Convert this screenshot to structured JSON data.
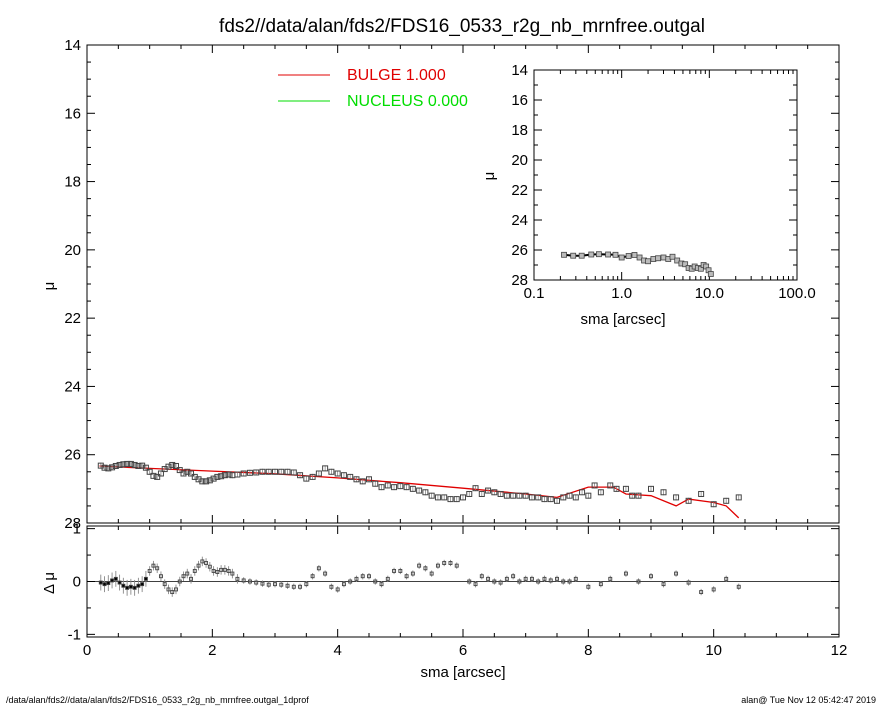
{
  "chart_data": [
    {
      "type": "scatter",
      "role": "main",
      "title": "fds2//data/alan/fds2/FDS16_0533_r2g_nb_mrnfree.outgal",
      "xlabel": "sma [arcsec]",
      "ylabel": "μ",
      "xlim": [
        0,
        12
      ],
      "ylim": [
        28,
        14
      ],
      "yreversed": true,
      "xticks": [
        "0",
        "2",
        "4",
        "6",
        "8",
        "10",
        "12"
      ],
      "yticks": [
        "14",
        "16",
        "18",
        "20",
        "22",
        "24",
        "26",
        "28"
      ],
      "legend": [
        {
          "label": "BULGE  1.000",
          "color": "#e00000"
        },
        {
          "label": "NUCLEUS  0.000",
          "color": "#00dd00"
        }
      ],
      "series": [
        {
          "name": "BULGE  1.000",
          "kind": "line",
          "color": "#e00000",
          "x": [
            0.2,
            1.0,
            2.0,
            3.0,
            4.0,
            5.0,
            6.0,
            7.0,
            7.5,
            8.0,
            8.4,
            8.6,
            9.0,
            9.4,
            9.6,
            10.0,
            10.2,
            10.4
          ],
          "y": [
            26.33,
            26.4,
            26.48,
            26.56,
            26.68,
            26.82,
            26.98,
            27.15,
            27.25,
            26.95,
            26.95,
            27.15,
            27.2,
            27.5,
            27.3,
            27.4,
            27.5,
            27.85
          ]
        },
        {
          "name": "data",
          "kind": "points",
          "color": "#444444",
          "x": [
            0.22,
            0.28,
            0.34,
            0.4,
            0.46,
            0.52,
            0.58,
            0.64,
            0.7,
            0.76,
            0.82,
            0.88,
            0.94,
            1.0,
            1.06,
            1.12,
            1.18,
            1.24,
            1.3,
            1.36,
            1.42,
            1.48,
            1.54,
            1.6,
            1.66,
            1.72,
            1.78,
            1.84,
            1.9,
            1.96,
            2.02,
            2.08,
            2.14,
            2.2,
            2.26,
            2.32,
            2.4,
            2.5,
            2.6,
            2.7,
            2.8,
            2.9,
            3.0,
            3.1,
            3.2,
            3.3,
            3.4,
            3.5,
            3.6,
            3.7,
            3.8,
            3.9,
            4.0,
            4.1,
            4.2,
            4.3,
            4.4,
            4.5,
            4.6,
            4.7,
            4.8,
            4.9,
            5.0,
            5.1,
            5.2,
            5.3,
            5.4,
            5.5,
            5.6,
            5.7,
            5.8,
            5.9,
            6.0,
            6.1,
            6.2,
            6.3,
            6.4,
            6.5,
            6.6,
            6.7,
            6.8,
            6.9,
            7.0,
            7.1,
            7.2,
            7.3,
            7.4,
            7.5,
            7.6,
            7.7,
            7.8,
            7.9,
            8.0,
            8.1,
            8.2,
            8.35,
            8.45,
            8.6,
            8.7,
            8.8,
            9.0,
            9.2,
            9.4,
            9.6,
            9.8,
            10.0,
            10.2,
            10.4
          ],
          "y": [
            26.32,
            26.38,
            26.4,
            26.37,
            26.33,
            26.3,
            26.28,
            26.27,
            26.27,
            26.3,
            26.33,
            26.32,
            26.38,
            26.5,
            26.62,
            26.65,
            26.55,
            26.42,
            26.35,
            26.3,
            26.33,
            26.45,
            26.55,
            26.5,
            26.55,
            26.65,
            26.72,
            26.78,
            26.78,
            26.75,
            26.7,
            26.65,
            26.63,
            26.6,
            26.58,
            26.6,
            26.58,
            26.55,
            26.53,
            26.52,
            26.5,
            26.5,
            26.5,
            26.5,
            26.5,
            26.52,
            26.6,
            26.7,
            26.65,
            26.55,
            26.4,
            26.5,
            26.55,
            26.6,
            26.65,
            26.72,
            26.78,
            26.72,
            26.85,
            26.95,
            26.9,
            26.95,
            26.92,
            26.95,
            27.0,
            27.05,
            27.1,
            27.2,
            27.25,
            27.25,
            27.3,
            27.3,
            27.25,
            27.15,
            26.98,
            27.15,
            27.05,
            27.1,
            27.15,
            27.2,
            27.2,
            27.2,
            27.2,
            27.25,
            27.25,
            27.3,
            27.3,
            27.35,
            27.25,
            27.2,
            27.25,
            27.1,
            27.2,
            26.9,
            27.1,
            26.9,
            27.0,
            27.0,
            27.2,
            27.2,
            27.0,
            27.1,
            27.25,
            27.35,
            27.15,
            27.45,
            27.35,
            27.25
          ]
        }
      ]
    },
    {
      "type": "scatter",
      "role": "inset",
      "xlabel": "sma [arcsec]",
      "ylabel": "μ",
      "xscale": "log",
      "xlim": [
        0.1,
        100.0
      ],
      "ylim": [
        28,
        14
      ],
      "yreversed": true,
      "xticks": [
        "0.1",
        "1.0",
        "10.0",
        "100.0"
      ],
      "yticks": [
        "14",
        "16",
        "18",
        "20",
        "22",
        "24",
        "26",
        "28"
      ],
      "series": [
        {
          "name": "data",
          "kind": "points-line",
          "color": "#444444",
          "x": [
            0.22,
            0.28,
            0.35,
            0.45,
            0.55,
            0.7,
            0.85,
            1.0,
            1.2,
            1.4,
            1.6,
            1.8,
            2.0,
            2.3,
            2.6,
            3.0,
            3.4,
            3.8,
            4.3,
            4.8,
            5.3,
            5.8,
            6.3,
            6.8,
            7.4,
            8.0,
            8.6,
            9.2,
            9.8,
            10.4
          ],
          "y": [
            26.32,
            26.38,
            26.38,
            26.3,
            26.28,
            26.3,
            26.32,
            26.5,
            26.4,
            26.33,
            26.5,
            26.7,
            26.75,
            26.6,
            26.55,
            26.5,
            26.6,
            26.45,
            26.7,
            26.9,
            26.95,
            27.2,
            27.25,
            27.1,
            27.2,
            27.25,
            27.0,
            27.1,
            27.35,
            27.6
          ]
        }
      ]
    },
    {
      "type": "scatter",
      "role": "residuals",
      "xlabel": "sma [arcsec]",
      "ylabel": "Δ μ",
      "xlim": [
        0,
        12
      ],
      "ylim": [
        -1,
        1
      ],
      "xticks": [
        "0",
        "2",
        "4",
        "6",
        "8",
        "10",
        "12"
      ],
      "yticks": [
        "1",
        "0",
        "-1"
      ],
      "series": [
        {
          "name": "residuals",
          "kind": "points-errorbars",
          "color": "#444444",
          "x": [
            0.22,
            0.28,
            0.34,
            0.4,
            0.46,
            0.52,
            0.58,
            0.64,
            0.7,
            0.76,
            0.82,
            0.88,
            0.94,
            1.0,
            1.06,
            1.12,
            1.18,
            1.24,
            1.3,
            1.36,
            1.42,
            1.48,
            1.54,
            1.6,
            1.66,
            1.72,
            1.78,
            1.84,
            1.9,
            1.96,
            2.02,
            2.08,
            2.14,
            2.2,
            2.26,
            2.32,
            2.4,
            2.5,
            2.6,
            2.7,
            2.8,
            2.9,
            3.0,
            3.1,
            3.2,
            3.3,
            3.4,
            3.5,
            3.6,
            3.7,
            3.8,
            3.9,
            4.0,
            4.1,
            4.2,
            4.3,
            4.4,
            4.5,
            4.6,
            4.7,
            4.8,
            4.9,
            5.0,
            5.1,
            5.2,
            5.3,
            5.4,
            5.5,
            5.6,
            5.7,
            5.8,
            5.9,
            6.1,
            6.2,
            6.3,
            6.4,
            6.5,
            6.6,
            6.7,
            6.8,
            6.9,
            7.0,
            7.1,
            7.2,
            7.3,
            7.4,
            7.5,
            7.6,
            7.7,
            7.8,
            8.0,
            8.2,
            8.35,
            8.6,
            8.8,
            9.0,
            9.2,
            9.4,
            9.6,
            9.8,
            10.0,
            10.2,
            10.4
          ],
          "y": [
            -0.02,
            -0.05,
            -0.03,
            0.02,
            0.05,
            -0.02,
            -0.08,
            -0.12,
            -0.1,
            -0.12,
            -0.08,
            -0.05,
            0.05,
            0.2,
            0.3,
            0.25,
            0.1,
            -0.05,
            -0.15,
            -0.2,
            -0.15,
            0.0,
            0.1,
            0.15,
            0.05,
            0.2,
            0.3,
            0.38,
            0.35,
            0.28,
            0.2,
            0.18,
            0.22,
            0.22,
            0.2,
            0.15,
            0.05,
            0.02,
            0.0,
            -0.02,
            -0.04,
            -0.06,
            -0.05,
            -0.06,
            -0.08,
            -0.1,
            -0.1,
            -0.05,
            0.1,
            0.25,
            0.15,
            -0.1,
            -0.15,
            -0.05,
            0.0,
            0.05,
            0.1,
            0.1,
            0.0,
            -0.05,
            0.05,
            0.2,
            0.2,
            0.1,
            0.15,
            0.3,
            0.25,
            0.15,
            0.3,
            0.35,
            0.35,
            0.3,
            0.0,
            -0.05,
            0.1,
            0.05,
            0.0,
            -0.02,
            0.05,
            0.1,
            0.0,
            0.05,
            0.05,
            0.0,
            0.05,
            0.02,
            0.05,
            0.0,
            0.0,
            0.05,
            -0.1,
            -0.05,
            0.05,
            0.15,
            0.0,
            0.1,
            -0.05,
            0.15,
            -0.02,
            -0.2,
            -0.15,
            0.05,
            -0.1
          ]
        }
      ]
    }
  ],
  "footer": {
    "left": "/data/alan/fds2//data/alan/fds2/FDS16_0533_r2g_nb_mrnfree.outgal_1dprof",
    "right": "alan@  Tue Nov 12 05:42:47 2019"
  }
}
